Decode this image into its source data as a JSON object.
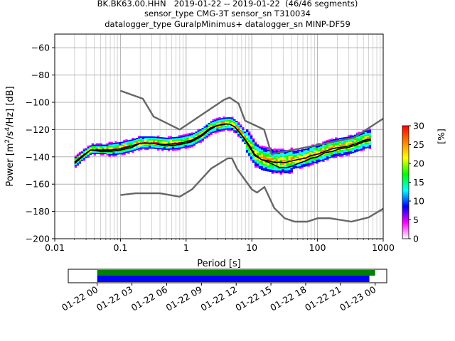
{
  "figure": {
    "title_lines": [
      "BK.BK63.00.HHN   2019-01-22 -- 2019-01-22  (46/46 segments)",
      "sensor_type CMG-3T sensor_sn T310034",
      "datalogger_type GuralpMinimus+ datalogger_sn MINP-DF59"
    ]
  },
  "chart_data": [
    {
      "type": "heatmap",
      "title": "BK.BK63.00.HHN   2019-01-22 -- 2019-01-22  (46/46 segments)",
      "xlabel": "Period [s]",
      "ylabel": "Power [m2/s4/Hz] [dB]",
      "x_scale": "log",
      "xlim": [
        0.01,
        1000
      ],
      "ylim": [
        -200,
        -50
      ],
      "x_ticks": [
        0.01,
        0.1,
        1,
        10,
        100,
        1000
      ],
      "x_tick_labels": [
        "0.01",
        "0.1",
        "1",
        "10",
        "100",
        "1000"
      ],
      "y_ticks": [
        -200,
        -180,
        -160,
        -140,
        -120,
        -100,
        -80,
        -60
      ],
      "y_tick_labels": [
        "−200",
        "−180",
        "−160",
        "−140",
        "−120",
        "−100",
        "−80",
        "−60"
      ],
      "grid": true,
      "colorbar": {
        "label": "[%]",
        "range": [
          0,
          30
        ],
        "ticks": [
          0,
          5,
          10,
          15,
          20,
          25,
          30
        ],
        "tick_labels": [
          "0",
          "5",
          "10",
          "15",
          "20",
          "25",
          "30"
        ],
        "colors": [
          "#ffffff",
          "#ff00ff",
          "#0000ff",
          "#00ffff",
          "#00ff00",
          "#ffff00",
          "#ff8000",
          "#ff0000"
        ]
      },
      "series": [
        {
          "name": "",
          "role": "high-noise-model",
          "color": "#666666",
          "x": [
            0.1,
            0.22,
            0.32,
            0.8,
            3.8,
            4.6,
            6.3,
            7.9,
            15.4,
            20,
            354.8,
            1000
          ],
          "y": [
            -91.5,
            -97.4,
            -110.5,
            -120,
            -98,
            -96.5,
            -101,
            -113.5,
            -120,
            -138,
            -126,
            -112
          ]
        },
        {
          "name": "",
          "role": "low-noise-model",
          "color": "#666666",
          "x": [
            0.1,
            0.17,
            0.4,
            0.8,
            1.24,
            2.4,
            4.3,
            5,
            6,
            10,
            12,
            15.6,
            21.9,
            31.6,
            45,
            70,
            101,
            154,
            328,
            600,
            1000
          ],
          "y": [
            -168,
            -166.7,
            -166.7,
            -169.2,
            -163.7,
            -148.6,
            -141.1,
            -141.1,
            -149,
            -163.8,
            -166.2,
            -162.1,
            -177.5,
            -185,
            -187.5,
            -187.5,
            -185,
            -185,
            -187.5,
            -184.4,
            -178
          ]
        },
        {
          "name": "",
          "role": "mode",
          "color": "#000000",
          "x": [
            0.02,
            0.025,
            0.035,
            0.05,
            0.07,
            0.1,
            0.15,
            0.2,
            0.3,
            0.5,
            0.8,
            1.2,
            1.7,
            2.3,
            3,
            4,
            4.6,
            5.5,
            7,
            9,
            11,
            14,
            18,
            22,
            27,
            33,
            40,
            50,
            65,
            80,
            100,
            130,
            170,
            220,
            300,
            400,
            500,
            650
          ],
          "y": [
            -145,
            -141,
            -135,
            -136,
            -136,
            -135,
            -133,
            -130,
            -130,
            -132,
            -131,
            -129,
            -125,
            -120,
            -117,
            -116,
            -116,
            -118,
            -124,
            -131,
            -138,
            -142,
            -144,
            -146,
            -148,
            -148,
            -147,
            -145,
            -143,
            -141,
            -140,
            -137,
            -136,
            -134,
            -133,
            -131,
            -129,
            -128
          ]
        },
        {
          "name": "",
          "role": "mean",
          "color": "#000000",
          "x": [
            0.02,
            0.025,
            0.035,
            0.05,
            0.07,
            0.1,
            0.15,
            0.2,
            0.3,
            0.5,
            0.8,
            1.2,
            1.7,
            2.3,
            3,
            4,
            4.6,
            5.5,
            7,
            9,
            11,
            14,
            18,
            22,
            27,
            33,
            40,
            50,
            65,
            80,
            100,
            130,
            170,
            220,
            300,
            400,
            500,
            650
          ],
          "y": [
            -144,
            -140,
            -135,
            -135,
            -135,
            -134,
            -132,
            -130,
            -130,
            -131,
            -130,
            -128,
            -124,
            -119,
            -117,
            -116,
            -116,
            -118,
            -124,
            -132,
            -139,
            -142,
            -143,
            -144,
            -144,
            -144,
            -143,
            -142,
            -141,
            -139,
            -138,
            -136,
            -134,
            -133,
            -132,
            -130,
            -128,
            -127
          ]
        }
      ]
    },
    {
      "type": "bar",
      "title": "",
      "xlabel": "",
      "x_type": "datetime",
      "xlim": [
        "2019-01-21 21:30",
        "2019-01-23 01:00"
      ],
      "x_ticks": [
        "2019-01-22 00:00",
        "2019-01-22 03:00",
        "2019-01-22 06:00",
        "2019-01-22 09:00",
        "2019-01-22 12:00",
        "2019-01-22 15:00",
        "2019-01-22 18:00",
        "2019-01-22 21:00",
        "2019-01-23 00:00"
      ],
      "x_tick_labels": [
        "01-22 00",
        "01-22 03",
        "01-22 06",
        "01-22 09",
        "01-22 12",
        "01-22 15",
        "01-22 18",
        "01-22 21",
        "01-23 00"
      ],
      "series": [
        {
          "name": "",
          "role": "data-availability",
          "color": "#008000",
          "start": "2019-01-22 00:00",
          "end": "2019-01-23 00:00"
        },
        {
          "name": "",
          "role": "processed-segments",
          "color": "#0000ff",
          "start": "2019-01-22 00:00",
          "end": "2019-01-22 23:30"
        }
      ]
    }
  ]
}
